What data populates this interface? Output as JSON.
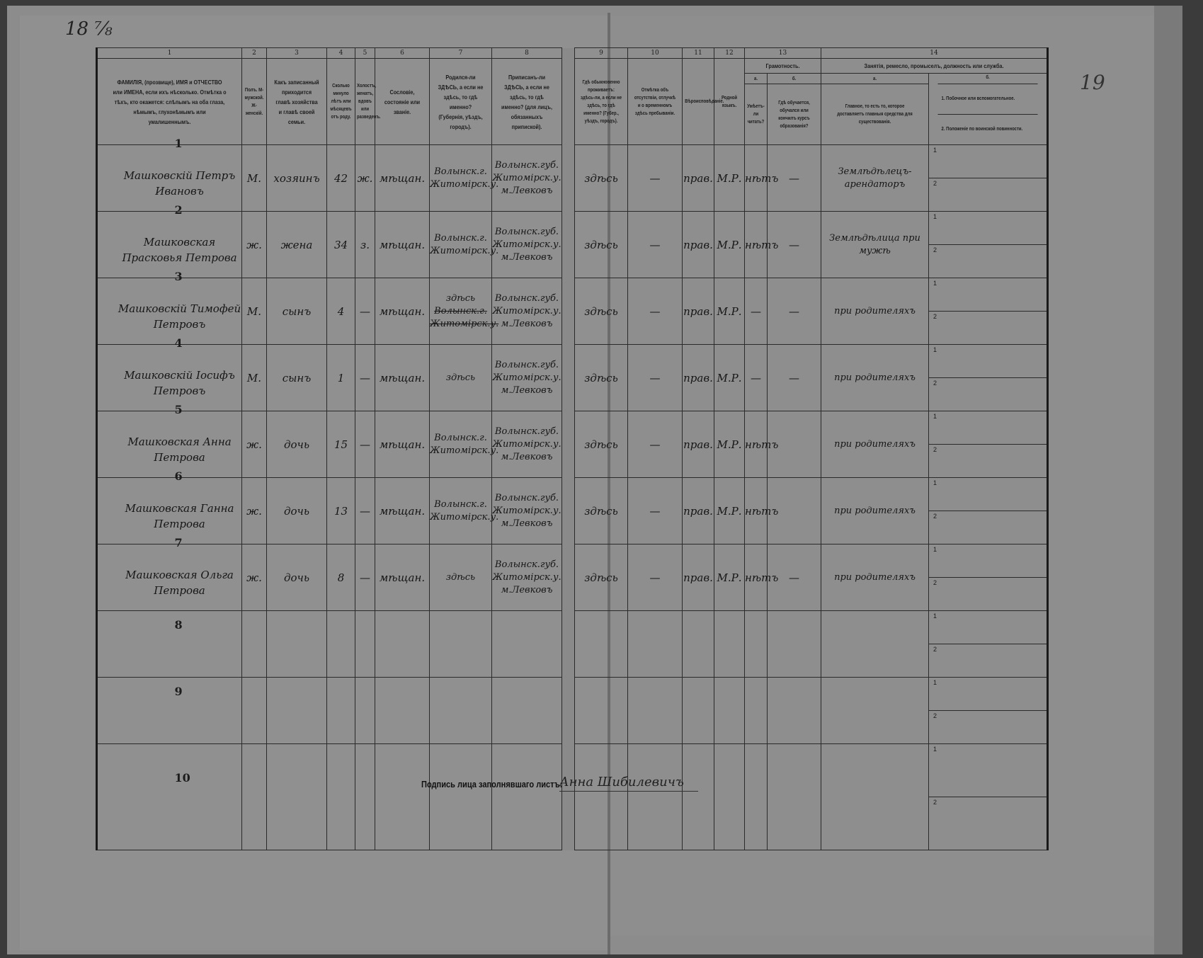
{
  "sheet_number": "18 ⅞",
  "page_number": "19",
  "header": {
    "numbers": [
      "1",
      "2",
      "3",
      "4",
      "5",
      "6",
      "7",
      "8",
      "9",
      "10",
      "11",
      "12",
      "13",
      "14"
    ],
    "col1": "ФАМИЛІЯ, (прозвище), ИМЯ и ОТЧЕСТВО или ИМЕНА, если ихъ нѣсколько. Отмѣтка о тѣхъ, кто окажется: слѣпымъ на оба глаза, нѣмымъ, глухонѣмымъ или умалишеннымъ.",
    "col2": "Полъ. М-мужской. Ж-женскій.",
    "col3": "Какъ записанный приходится главѣ хозяйства и главѣ своей семьи.",
    "col4": "Сколько минуло лѣтъ или мѣсяцевъ отъ роду.",
    "col5": "Холостъ, женатъ, вдовъ или разведенъ.",
    "col6": "Сословіе, состояніе или званіе.",
    "col7": "Родился-ли ЗДѢСЬ, а если не здѣсь, то гдѣ именно? (Губернія, уѣздъ, городъ).",
    "col8": "Приписанъ-ли ЗДѢСЬ, а если не здѣсь, то гдѣ именно? (для лицъ, обязанныхъ припиской).",
    "col9": "Гдѣ обыкновенно проживаетъ: здѣсь-ли, а если не здѣсь, то гдѣ именно? (Губер., уѣздъ, городъ).",
    "col10": "Отмѣтка объ отсутствіи, отлучкѣ и о временномъ здѣсь пребываніи.",
    "col11": "Вѣроисповѣданіе.",
    "col12": "Родной языкъ.",
    "col13": "Грамотность.",
    "col13a_letter": "а.",
    "col13b_letter": "б.",
    "col13a": "Умѣетъ-ли читать?",
    "col13b": "Гдѣ обучается, обучался или кончилъ курсъ образованія?",
    "col14": "Занятія, ремесло, промыселъ, должность или служба.",
    "col14a_letter": "а.",
    "col14b_letter": "б.",
    "col14a": "Главное, то есть то, которое доставляетъ главныя средства для существованія.",
    "col14b_1": "1. Побочное или вспомогательное.",
    "col14b_2": "2. Положеніе по воинской повинности."
  },
  "sub_labels": [
    "1",
    "2"
  ],
  "rows": [
    {
      "no": "1",
      "name": "Машковскій Петръ Ивановъ",
      "sex": "М.",
      "relation": "хозяинъ",
      "age": "42",
      "marital": "ж.",
      "estate": "мѣщан.",
      "birthplace": "Волынск.г. Житомірск.у.",
      "birthplace_struck": "",
      "registered": "Волынск.губ. Житомірск.у. м.Левковъ",
      "residence": "здѣсь",
      "absence": "—",
      "religion": "прав.",
      "language": "М.Р.",
      "literate": "нѣтъ",
      "education": "—",
      "occupation": "Землѣдѣлецъ-арендаторъ"
    },
    {
      "no": "2",
      "name": "Машковская Прасковья Петрова",
      "sex": "ж.",
      "relation": "жена",
      "age": "34",
      "marital": "з.",
      "estate": "мѣщан.",
      "birthplace": "Волынск.г. Житомірск.у.",
      "birthplace_struck": "",
      "registered": "Волынск.губ. Житомірск.у. м.Левковъ",
      "residence": "здѣсь",
      "absence": "—",
      "religion": "прав.",
      "language": "М.Р.",
      "literate": "нѣтъ",
      "education": "—",
      "occupation": "Землѣдѣлица при мужѣ"
    },
    {
      "no": "3",
      "name": "Машковскій Тимофей Петровъ",
      "sex": "М.",
      "relation": "сынъ",
      "age": "4",
      "marital": "—",
      "estate": "мѣщан.",
      "birthplace": "здѣсь",
      "birthplace_struck": "Волынск.г. Житомірск.у.",
      "registered": "Волынск.губ. Житомірск.у. м.Левковъ",
      "residence": "здѣсь",
      "absence": "—",
      "religion": "прав.",
      "language": "М.Р.",
      "literate": "—",
      "education": "—",
      "occupation": "при родителяхъ"
    },
    {
      "no": "4",
      "name": "Машковскій Іосифъ Петровъ",
      "sex": "М.",
      "relation": "сынъ",
      "age": "1",
      "marital": "—",
      "estate": "мѣщан.",
      "birthplace": "здѣсь",
      "birthplace_struck": "",
      "registered": "Волынск.губ. Житомірск.у. м.Левковъ",
      "residence": "здѣсь",
      "absence": "—",
      "religion": "прав.",
      "language": "М.Р.",
      "literate": "—",
      "education": "—",
      "occupation": "при родителяхъ"
    },
    {
      "no": "5",
      "name": "Машковская Анна Петрова",
      "sex": "ж.",
      "relation": "дочь",
      "age": "15",
      "marital": "—",
      "estate": "мѣщан.",
      "birthplace": "Волынск.г. Житомірск.у.",
      "birthplace_struck": "",
      "registered": "Волынск.губ. Житомірск.у. м.Левковъ",
      "residence": "здѣсь",
      "absence": "—",
      "religion": "прав.",
      "language": "М.Р.",
      "literate": "нѣтъ",
      "education": "",
      "occupation": "при родителяхъ"
    },
    {
      "no": "6",
      "name": "Машковская Ганна Петрова",
      "sex": "ж.",
      "relation": "дочь",
      "age": "13",
      "marital": "—",
      "estate": "мѣщан.",
      "birthplace": "Волынск.г. Житомірск.у.",
      "birthplace_struck": "",
      "registered": "Волынск.губ. Житомірск.у. м.Левковъ",
      "residence": "здѣсь",
      "absence": "—",
      "religion": "прав.",
      "language": "М.Р.",
      "literate": "нѣтъ",
      "education": "",
      "occupation": "при родителяхъ"
    },
    {
      "no": "7",
      "name": "Машковская Ольга Петрова",
      "sex": "ж.",
      "relation": "дочь",
      "age": "8",
      "marital": "—",
      "estate": "мѣщан.",
      "birthplace": "здѣсь",
      "birthplace_struck": "",
      "registered": "Волынск.губ. Житомірск.у. м.Левковъ",
      "residence": "здѣсь",
      "absence": "—",
      "religion": "прав.",
      "language": "М.Р.",
      "literate": "нѣтъ",
      "education": "—",
      "occupation": "при родителяхъ"
    },
    {
      "no": "8"
    },
    {
      "no": "9"
    },
    {
      "no": "10"
    }
  ],
  "footer": {
    "label": "Подпись лица заполнявшаго листъ:",
    "signature": "Анна Шибилевичъ"
  }
}
